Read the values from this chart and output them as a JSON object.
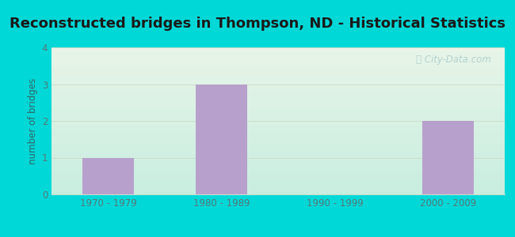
{
  "title": "Reconstructed bridges in Thompson, ND - Historical Statistics",
  "categories": [
    "1970 - 1979",
    "1980 - 1989",
    "1990 - 1999",
    "2000 - 2009"
  ],
  "values": [
    1,
    3,
    0,
    2
  ],
  "bar_color": "#b8a0cc",
  "ylabel": "number of bridges",
  "ylim": [
    0,
    4
  ],
  "yticks": [
    0,
    1,
    2,
    3,
    4
  ],
  "title_fontsize": 13,
  "axis_label_color": "#336666",
  "tick_label_color": "#557777",
  "background_outer": "#00d8d8",
  "bg_top": "#e8f5e8",
  "bg_bottom": "#c8eee0",
  "grid_color": "#ccddcc",
  "watermark": "ⓘ City-Data.com",
  "watermark_color": "#aacccc"
}
